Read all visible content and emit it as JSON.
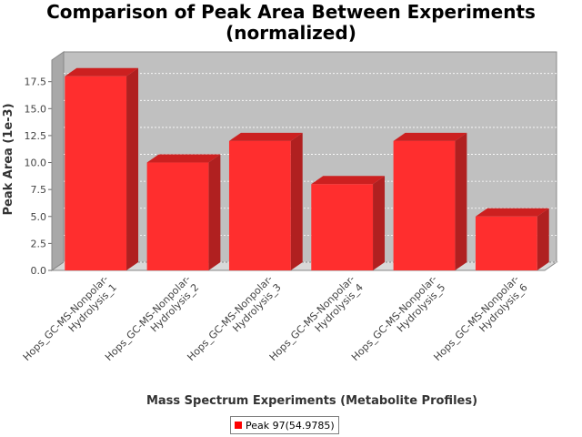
{
  "chart_data": {
    "type": "bar",
    "title_lines": [
      "Comparison of Peak Area Between Experiments",
      "(normalized)"
    ],
    "xlabel": "Mass Spectrum Experiments (Metabolite Profiles)",
    "ylabel": "Peak Area (1e-3)",
    "categories": [
      [
        "Hops_GC-MS-Nonpolar-",
        "Hydrolysis_1"
      ],
      [
        "Hops_GC-MS-Nonpolar-",
        "Hydrolysis_2"
      ],
      [
        "Hops_GC-MS-Nonpolar-",
        "Hydrolysis_3"
      ],
      [
        "Hops_GC-MS-Nonpolar-",
        "Hydrolysis_4"
      ],
      [
        "Hops_GC-MS-Nonpolar-",
        "Hydrolysis_5"
      ],
      [
        "Hops_GC-MS-Nonpolar-",
        "Hydrolysis_6"
      ]
    ],
    "series": [
      {
        "name": "Peak 97(54.9785)",
        "values": [
          18.0,
          10.0,
          12.0,
          8.0,
          12.0,
          5.0
        ]
      }
    ],
    "ylim": [
      0,
      19.5
    ],
    "yticks": [
      "0.0",
      "2.5",
      "5.0",
      "7.5",
      "10.0",
      "12.5",
      "15.0",
      "17.5"
    ],
    "grid": true,
    "legend_position": "bottom",
    "colors": {
      "bar": "#ff2e2e",
      "bar_top": "#cc2020",
      "bar_side": "#b02020",
      "plot_bg": "#c0c0c0",
      "wall": "#a8a8a8"
    }
  }
}
